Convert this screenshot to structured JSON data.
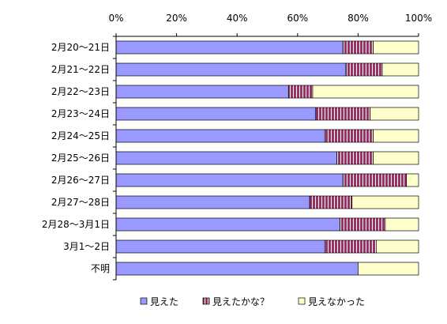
{
  "chart_data": {
    "type": "bar",
    "orientation": "horizontal",
    "stacking": "percent",
    "categories": [
      "2月20～21日",
      "2月21～22日",
      "2月22～23日",
      "2月23～24日",
      "2月24～25日",
      "2月25～26日",
      "2月26～27日",
      "2月27～28日",
      "2月28～3月1日",
      "3月1～2日",
      "不明"
    ],
    "series": [
      {
        "name": "見えた",
        "color": "#9999FF",
        "pattern": "solid",
        "values": [
          75,
          76,
          57,
          66,
          69,
          73,
          75,
          64,
          74,
          69,
          80
        ]
      },
      {
        "name": "見えたかな？",
        "color": "#993366",
        "pattern": "vertical-stripes",
        "values": [
          10,
          12,
          8,
          18,
          16,
          12,
          21,
          14,
          15,
          17,
          0
        ]
      },
      {
        "name": "見えなかった",
        "color": "#FFFFCC",
        "pattern": "solid",
        "values": [
          15,
          12,
          35,
          16,
          15,
          15,
          4,
          22,
          11,
          14,
          20
        ]
      }
    ],
    "xticks": [
      "0%",
      "20%",
      "40%",
      "60%",
      "80%",
      "100%"
    ],
    "xlim": [
      0,
      100
    ],
    "value_axis_position": "top",
    "grid": false,
    "legend_position": "bottom"
  }
}
